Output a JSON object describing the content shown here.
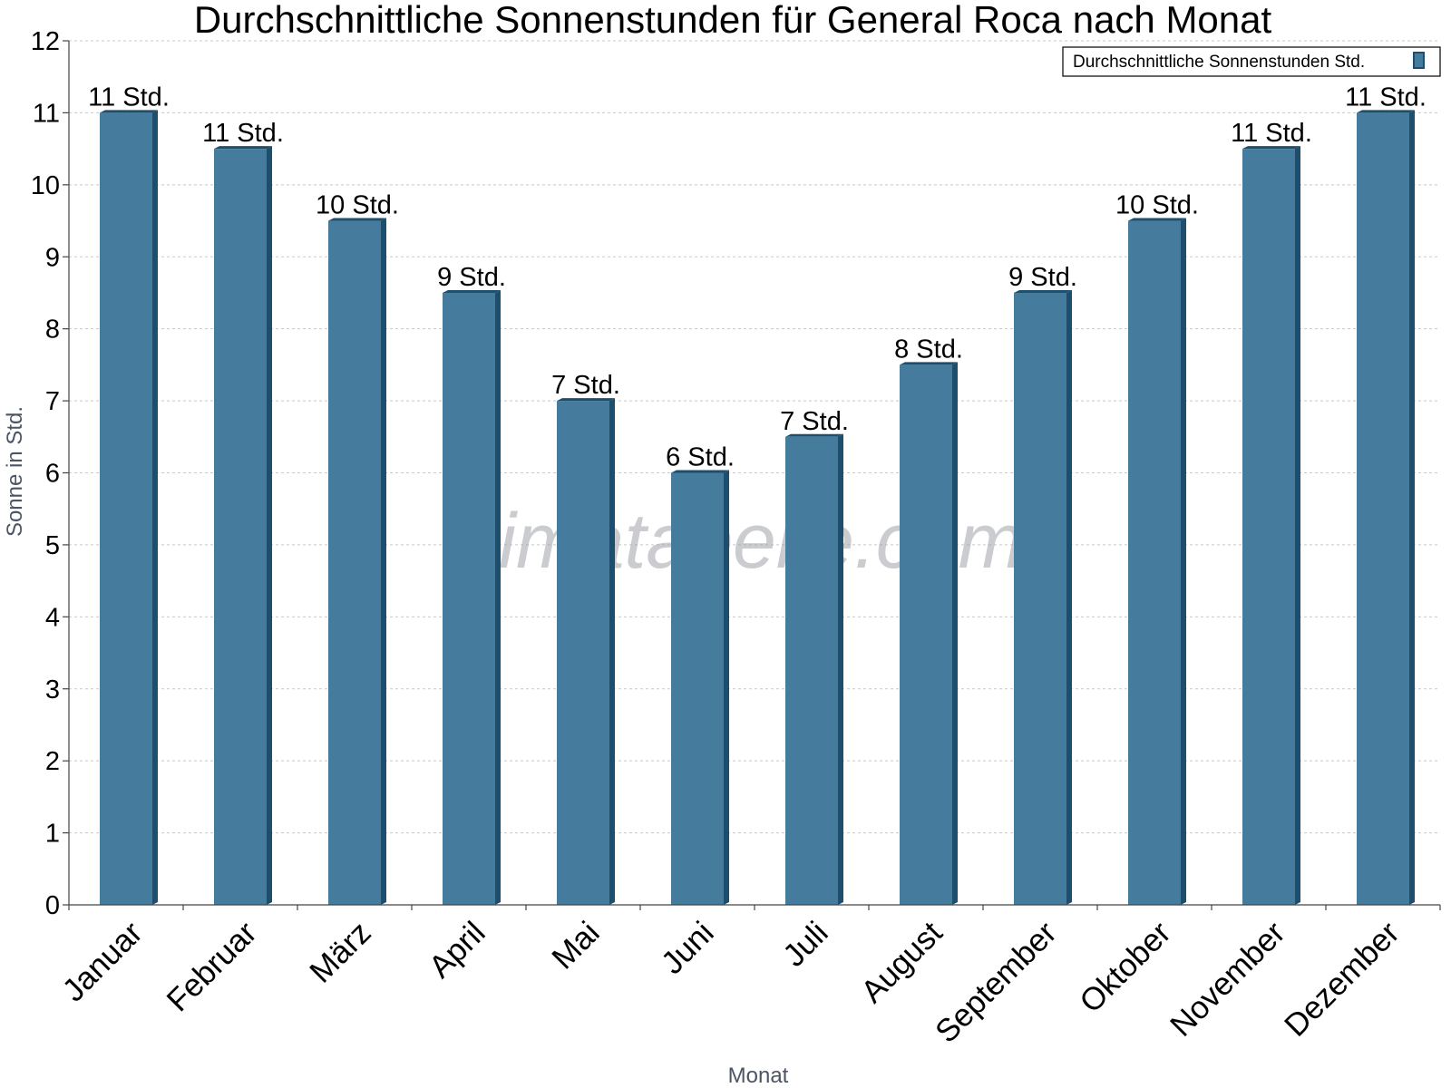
{
  "chart_data": {
    "type": "bar",
    "title": "Durchschnittliche Sonnenstunden für General Roca nach Monat",
    "xlabel": "Monat",
    "ylabel": "Sonne in Std.",
    "ylim": [
      0,
      12
    ],
    "yticks": [
      0,
      1,
      2,
      3,
      4,
      5,
      6,
      7,
      8,
      9,
      10,
      11,
      12
    ],
    "grid": true,
    "legend_position": "top-right",
    "categories": [
      "Januar",
      "Februar",
      "März",
      "April",
      "Mai",
      "Juni",
      "Juli",
      "August",
      "September",
      "Oktober",
      "November",
      "Dezember"
    ],
    "series": [
      {
        "name": "Durchschnittliche Sonnenstunden Std.",
        "values": [
          11,
          10.5,
          9.5,
          8.5,
          7,
          6,
          6.5,
          7.5,
          8.5,
          9.5,
          10.5,
          11
        ],
        "labels": [
          "11 Std.",
          "11 Std.",
          "10 Std.",
          "9 Std.",
          "7 Std.",
          "6 Std.",
          "7 Std.",
          "8 Std.",
          "9 Std.",
          "10 Std.",
          "11 Std.",
          "11 Std."
        ],
        "color": "#457b9d",
        "edge_color": "#1d4e6e"
      }
    ],
    "watermark": "klimatabelle.com"
  }
}
